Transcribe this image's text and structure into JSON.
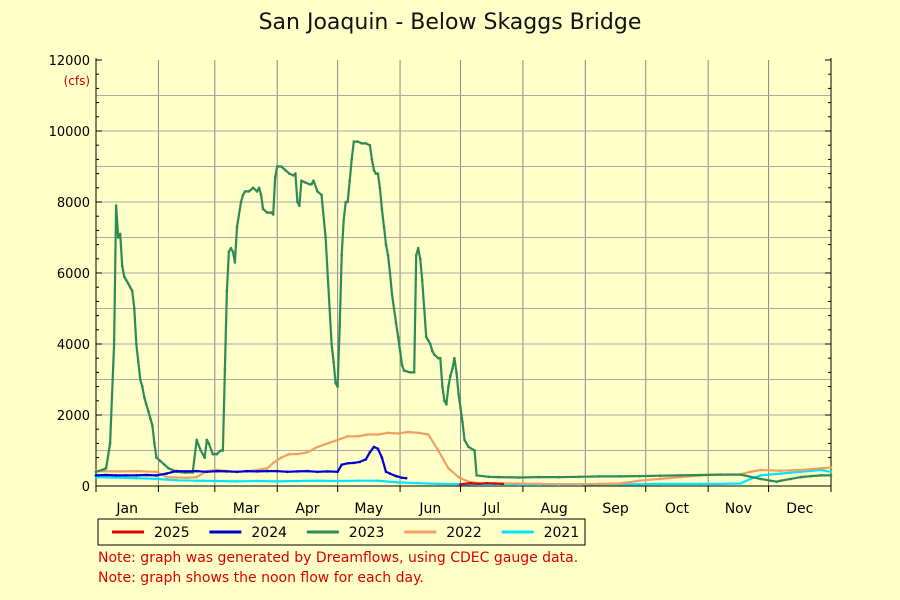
{
  "chart_data": {
    "type": "line",
    "title": "San Joaquin - Below Skaggs Bridge",
    "ylabel": "(cfs)",
    "xlabel": "",
    "ylim": [
      0,
      12000
    ],
    "xlim": [
      0,
      365
    ],
    "yticks": [
      0,
      2000,
      4000,
      6000,
      8000,
      10000,
      12000
    ],
    "months": [
      "Jan",
      "Feb",
      "Mar",
      "Apr",
      "May",
      "Jun",
      "Jul",
      "Aug",
      "Sep",
      "Oct",
      "Nov",
      "Dec"
    ],
    "x_unit": "day of year",
    "grid": true,
    "legend_position": "bottom",
    "series": [
      {
        "name": "2025",
        "color": "#dd0000",
        "points": [
          [
            181,
            50
          ],
          [
            186,
            80
          ],
          [
            190,
            60
          ],
          [
            194,
            80
          ],
          [
            198,
            70
          ],
          [
            202,
            60
          ]
        ]
      },
      {
        "name": "2024",
        "color": "#0000cc",
        "points": [
          [
            0,
            300
          ],
          [
            5,
            310
          ],
          [
            10,
            300
          ],
          [
            15,
            300
          ],
          [
            20,
            300
          ],
          [
            25,
            310
          ],
          [
            30,
            300
          ],
          [
            35,
            350
          ],
          [
            40,
            420
          ],
          [
            45,
            410
          ],
          [
            50,
            420
          ],
          [
            55,
            400
          ],
          [
            60,
            420
          ],
          [
            65,
            410
          ],
          [
            70,
            400
          ],
          [
            75,
            420
          ],
          [
            80,
            410
          ],
          [
            85,
            420
          ],
          [
            90,
            420
          ],
          [
            95,
            400
          ],
          [
            100,
            410
          ],
          [
            105,
            420
          ],
          [
            110,
            400
          ],
          [
            115,
            410
          ],
          [
            120,
            400
          ],
          [
            122,
            600
          ],
          [
            125,
            640
          ],
          [
            128,
            650
          ],
          [
            131,
            680
          ],
          [
            134,
            750
          ],
          [
            136,
            950
          ],
          [
            138,
            1100
          ],
          [
            140,
            1050
          ],
          [
            142,
            800
          ],
          [
            144,
            400
          ],
          [
            146,
            350
          ],
          [
            149,
            280
          ],
          [
            152,
            230
          ],
          [
            154,
            220
          ]
        ]
      },
      {
        "name": "2023",
        "color": "#2e8b57",
        "points": [
          [
            0,
            400
          ],
          [
            3,
            450
          ],
          [
            5,
            500
          ],
          [
            7,
            1200
          ],
          [
            9,
            4000
          ],
          [
            10,
            7900
          ],
          [
            11,
            7000
          ],
          [
            12,
            7100
          ],
          [
            13,
            6200
          ],
          [
            14,
            5900
          ],
          [
            15,
            5800
          ],
          [
            16,
            5700
          ],
          [
            17,
            5600
          ],
          [
            18,
            5500
          ],
          [
            19,
            5000
          ],
          [
            20,
            4000
          ],
          [
            21,
            3500
          ],
          [
            22,
            3000
          ],
          [
            23,
            2800
          ],
          [
            24,
            2500
          ],
          [
            25,
            2300
          ],
          [
            26,
            2100
          ],
          [
            27,
            1900
          ],
          [
            28,
            1700
          ],
          [
            29,
            1200
          ],
          [
            30,
            800
          ],
          [
            32,
            700
          ],
          [
            34,
            600
          ],
          [
            36,
            500
          ],
          [
            38,
            450
          ],
          [
            40,
            400
          ],
          [
            44,
            380
          ],
          [
            48,
            380
          ],
          [
            50,
            1300
          ],
          [
            52,
            1000
          ],
          [
            54,
            800
          ],
          [
            55,
            1300
          ],
          [
            56,
            1200
          ],
          [
            58,
            900
          ],
          [
            60,
            900
          ],
          [
            62,
            1000
          ],
          [
            63,
            1000
          ],
          [
            64,
            3300
          ],
          [
            65,
            5500
          ],
          [
            66,
            6600
          ],
          [
            67,
            6700
          ],
          [
            68,
            6600
          ],
          [
            69,
            6300
          ],
          [
            70,
            7300
          ],
          [
            72,
            8000
          ],
          [
            73,
            8200
          ],
          [
            74,
            8300
          ],
          [
            76,
            8300
          ],
          [
            78,
            8400
          ],
          [
            80,
            8300
          ],
          [
            81,
            8400
          ],
          [
            82,
            8200
          ],
          [
            83,
            7800
          ],
          [
            85,
            7700
          ],
          [
            87,
            7700
          ],
          [
            88,
            7650
          ],
          [
            89,
            8700
          ],
          [
            90,
            9000
          ],
          [
            92,
            9000
          ],
          [
            94,
            8900
          ],
          [
            96,
            8800
          ],
          [
            98,
            8750
          ],
          [
            99,
            8800
          ],
          [
            100,
            8000
          ],
          [
            101,
            7900
          ],
          [
            102,
            8600
          ],
          [
            104,
            8550
          ],
          [
            106,
            8500
          ],
          [
            107,
            8500
          ],
          [
            108,
            8600
          ],
          [
            110,
            8300
          ],
          [
            112,
            8200
          ],
          [
            114,
            7000
          ],
          [
            116,
            5000
          ],
          [
            117,
            4000
          ],
          [
            118,
            3500
          ],
          [
            119,
            2900
          ],
          [
            120,
            2800
          ],
          [
            121,
            4500
          ],
          [
            122,
            6500
          ],
          [
            123,
            7500
          ],
          [
            124,
            8000
          ],
          [
            125,
            8000
          ],
          [
            126,
            8600
          ],
          [
            127,
            9200
          ],
          [
            128,
            9700
          ],
          [
            130,
            9700
          ],
          [
            132,
            9650
          ],
          [
            134,
            9650
          ],
          [
            136,
            9600
          ],
          [
            137,
            9200
          ],
          [
            138,
            8900
          ],
          [
            139,
            8800
          ],
          [
            140,
            8800
          ],
          [
            141,
            8400
          ],
          [
            142,
            7800
          ],
          [
            143,
            7300
          ],
          [
            144,
            6800
          ],
          [
            145,
            6500
          ],
          [
            146,
            6000
          ],
          [
            147,
            5400
          ],
          [
            148,
            5000
          ],
          [
            149,
            4600
          ],
          [
            150,
            4200
          ],
          [
            151,
            3800
          ],
          [
            152,
            3400
          ],
          [
            153,
            3250
          ],
          [
            156,
            3200
          ],
          [
            158,
            3200
          ],
          [
            159,
            6500
          ],
          [
            160,
            6700
          ],
          [
            161,
            6400
          ],
          [
            162,
            5800
          ],
          [
            163,
            5000
          ],
          [
            164,
            4200
          ],
          [
            165,
            4100
          ],
          [
            166,
            4000
          ],
          [
            167,
            3800
          ],
          [
            168,
            3700
          ],
          [
            170,
            3600
          ],
          [
            171,
            3600
          ],
          [
            172,
            2800
          ],
          [
            173,
            2400
          ],
          [
            174,
            2300
          ],
          [
            175,
            2800
          ],
          [
            176,
            3100
          ],
          [
            177,
            3300
          ],
          [
            178,
            3600
          ],
          [
            179,
            3200
          ],
          [
            180,
            2600
          ],
          [
            181,
            2200
          ],
          [
            182,
            1800
          ],
          [
            183,
            1300
          ],
          [
            185,
            1100
          ],
          [
            188,
            1000
          ],
          [
            189,
            300
          ],
          [
            195,
            260
          ],
          [
            200,
            250
          ],
          [
            210,
            240
          ],
          [
            220,
            250
          ],
          [
            230,
            250
          ],
          [
            240,
            260
          ],
          [
            250,
            270
          ],
          [
            260,
            270
          ],
          [
            270,
            280
          ],
          [
            280,
            290
          ],
          [
            290,
            300
          ],
          [
            300,
            310
          ],
          [
            310,
            320
          ],
          [
            320,
            320
          ],
          [
            330,
            200
          ],
          [
            335,
            150
          ],
          [
            338,
            120
          ],
          [
            340,
            150
          ],
          [
            345,
            200
          ],
          [
            350,
            250
          ],
          [
            355,
            280
          ],
          [
            360,
            300
          ],
          [
            365,
            300
          ]
        ]
      },
      {
        "name": "2022",
        "color": "#f0a060",
        "points": [
          [
            0,
            420
          ],
          [
            10,
            410
          ],
          [
            20,
            420
          ],
          [
            30,
            400
          ],
          [
            35,
            250
          ],
          [
            40,
            240
          ],
          [
            45,
            230
          ],
          [
            50,
            250
          ],
          [
            55,
            420
          ],
          [
            60,
            450
          ],
          [
            65,
            420
          ],
          [
            70,
            400
          ],
          [
            75,
            410
          ],
          [
            80,
            450
          ],
          [
            85,
            500
          ],
          [
            88,
            650
          ],
          [
            92,
            800
          ],
          [
            96,
            900
          ],
          [
            100,
            900
          ],
          [
            105,
            950
          ],
          [
            110,
            1100
          ],
          [
            115,
            1200
          ],
          [
            120,
            1300
          ],
          [
            125,
            1400
          ],
          [
            130,
            1400
          ],
          [
            135,
            1450
          ],
          [
            140,
            1450
          ],
          [
            145,
            1500
          ],
          [
            150,
            1480
          ],
          [
            155,
            1520
          ],
          [
            160,
            1500
          ],
          [
            165,
            1450
          ],
          [
            170,
            1000
          ],
          [
            175,
            500
          ],
          [
            180,
            250
          ],
          [
            185,
            120
          ],
          [
            190,
            80
          ],
          [
            200,
            70
          ],
          [
            210,
            70
          ],
          [
            220,
            60
          ],
          [
            230,
            50
          ],
          [
            240,
            50
          ],
          [
            250,
            60
          ],
          [
            260,
            70
          ],
          [
            270,
            150
          ],
          [
            280,
            200
          ],
          [
            290,
            250
          ],
          [
            300,
            300
          ],
          [
            310,
            320
          ],
          [
            320,
            330
          ],
          [
            325,
            400
          ],
          [
            330,
            450
          ],
          [
            340,
            430
          ],
          [
            350,
            450
          ],
          [
            360,
            500
          ],
          [
            365,
            520
          ]
        ]
      },
      {
        "name": "2021",
        "color": "#00e5ff",
        "points": [
          [
            0,
            250
          ],
          [
            10,
            240
          ],
          [
            20,
            220
          ],
          [
            30,
            200
          ],
          [
            40,
            160
          ],
          [
            50,
            150
          ],
          [
            60,
            140
          ],
          [
            70,
            130
          ],
          [
            80,
            140
          ],
          [
            90,
            130
          ],
          [
            100,
            140
          ],
          [
            110,
            150
          ],
          [
            120,
            140
          ],
          [
            130,
            150
          ],
          [
            140,
            150
          ],
          [
            150,
            100
          ],
          [
            160,
            80
          ],
          [
            170,
            60
          ],
          [
            180,
            50
          ],
          [
            190,
            40
          ],
          [
            200,
            40
          ],
          [
            210,
            40
          ],
          [
            220,
            40
          ],
          [
            230,
            40
          ],
          [
            240,
            40
          ],
          [
            250,
            50
          ],
          [
            260,
            50
          ],
          [
            270,
            50
          ],
          [
            280,
            60
          ],
          [
            290,
            60
          ],
          [
            300,
            60
          ],
          [
            310,
            60
          ],
          [
            320,
            70
          ],
          [
            325,
            200
          ],
          [
            330,
            300
          ],
          [
            340,
            350
          ],
          [
            350,
            400
          ],
          [
            360,
            450
          ],
          [
            365,
            400
          ]
        ]
      }
    ]
  },
  "notes": [
    "Note: graph was generated by Dreamflows, using CDEC gauge data.",
    "Note: graph shows the noon flow for each day."
  ]
}
